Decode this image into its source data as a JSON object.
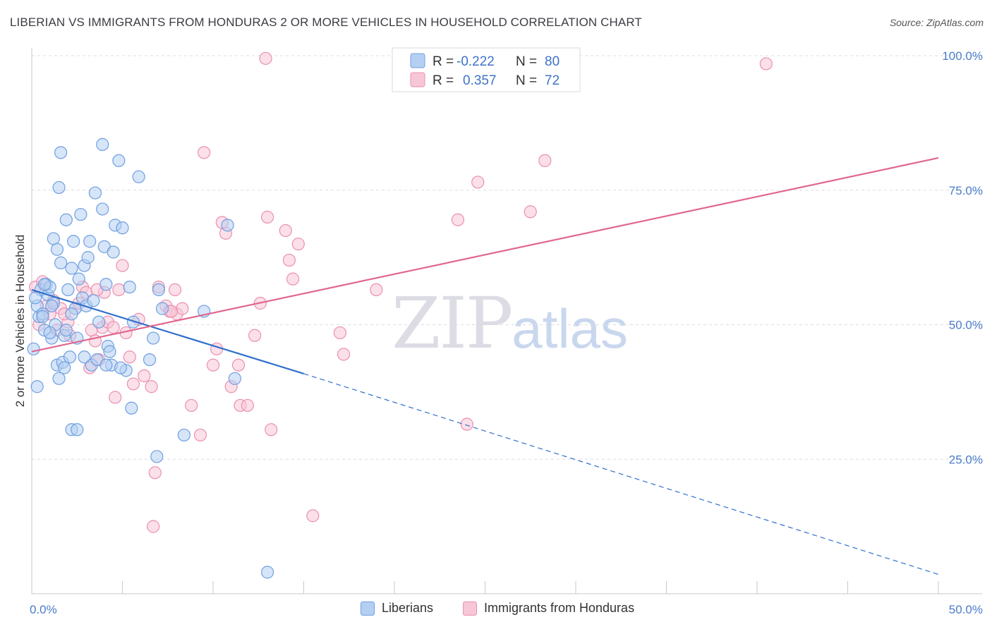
{
  "title": "LIBERIAN VS IMMIGRANTS FROM HONDURAS 2 OR MORE VEHICLES IN HOUSEHOLD CORRELATION CHART",
  "source": "Source: ZipAtlas.com",
  "watermark": {
    "zip": "ZIP",
    "atlas": "atlas"
  },
  "colors": {
    "blue_fill": "#b4cff2",
    "blue_stroke": "#6f9fe0",
    "blue_line": "#2f6fcc",
    "pink_fill": "#f7c6d7",
    "pink_stroke": "#eb8fb0",
    "pink_line": "#e0678f",
    "grid": "#dcdce4",
    "tick_text": "#4a7cc9"
  },
  "legend": {
    "rows": [
      {
        "r_label": "R =",
        "r_value": "-0.222",
        "n_label": "N =",
        "n_value": "80"
      },
      {
        "r_label": "R =",
        "r_value": "0.357",
        "n_label": "N =",
        "n_value": "72"
      }
    ]
  },
  "chart_data": {
    "type": "scatter",
    "title": "LIBERIAN VS IMMIGRANTS FROM HONDURAS 2 OR MORE VEHICLES IN HOUSEHOLD CORRELATION CHART",
    "xlabel": "",
    "ylabel": "2 or more Vehicles in Household",
    "xlim": [
      0,
      50
    ],
    "ylim": [
      0,
      102
    ],
    "x_tick_labels": [
      {
        "value": 0,
        "label": "0.0%"
      },
      {
        "value": 50,
        "label": "50.0%"
      }
    ],
    "y_tick_labels": [
      {
        "value": 25,
        "label": "25.0%"
      },
      {
        "value": 50,
        "label": "50.0%"
      },
      {
        "value": 75,
        "label": "75.0%"
      },
      {
        "value": 100,
        "label": "100.0%"
      }
    ],
    "grid": true,
    "legend_position": "top-center",
    "series": [
      {
        "name": "Liberians",
        "color": "blue",
        "r": -0.222,
        "n": 80,
        "trend": {
          "x0": 0,
          "y0": 56.5,
          "x1": 15,
          "y1": 40.9,
          "dash_to_x": 50,
          "dash_to_y": 3.6
        },
        "points": [
          [
            0.1,
            45.5
          ],
          [
            0.3,
            53.5
          ],
          [
            0.4,
            51.5
          ],
          [
            0.5,
            56.5
          ],
          [
            0.6,
            52.0
          ],
          [
            0.7,
            49.0
          ],
          [
            0.8,
            57.5
          ],
          [
            0.9,
            55.5
          ],
          [
            1.0,
            57.0
          ],
          [
            1.1,
            47.5
          ],
          [
            1.2,
            54.0
          ],
          [
            1.3,
            50.0
          ],
          [
            1.4,
            42.5
          ],
          [
            1.5,
            40.0
          ],
          [
            1.6,
            61.5
          ],
          [
            1.7,
            43.0
          ],
          [
            1.8,
            48.0
          ],
          [
            1.9,
            49.0
          ],
          [
            2.0,
            56.5
          ],
          [
            2.1,
            44.0
          ],
          [
            2.2,
            60.5
          ],
          [
            2.3,
            65.5
          ],
          [
            2.4,
            53.0
          ],
          [
            2.5,
            47.5
          ],
          [
            2.6,
            58.5
          ],
          [
            2.7,
            70.5
          ],
          [
            2.8,
            55.0
          ],
          [
            2.9,
            61.0
          ],
          [
            3.0,
            53.5
          ],
          [
            3.1,
            62.5
          ],
          [
            3.2,
            65.5
          ],
          [
            3.3,
            42.5
          ],
          [
            3.5,
            74.5
          ],
          [
            3.7,
            50.5
          ],
          [
            3.9,
            71.5
          ],
          [
            4.0,
            64.5
          ],
          [
            4.1,
            57.5
          ],
          [
            4.2,
            46.0
          ],
          [
            4.3,
            45.0
          ],
          [
            4.4,
            42.5
          ],
          [
            4.5,
            63.5
          ],
          [
            4.6,
            68.5
          ],
          [
            5.0,
            68.0
          ],
          [
            5.2,
            41.5
          ],
          [
            5.4,
            57.0
          ],
          [
            5.5,
            34.5
          ],
          [
            5.6,
            50.5
          ],
          [
            5.9,
            77.5
          ],
          [
            6.5,
            43.5
          ],
          [
            6.7,
            47.5
          ],
          [
            7.0,
            56.5
          ],
          [
            7.2,
            53.0
          ],
          [
            9.5,
            52.5
          ],
          [
            10.8,
            68.5
          ],
          [
            11.2,
            40.0
          ],
          [
            13.0,
            4.0
          ],
          [
            0.3,
            38.5
          ],
          [
            1.2,
            66.0
          ],
          [
            1.4,
            64.0
          ],
          [
            1.5,
            75.5
          ],
          [
            1.6,
            82.0
          ],
          [
            1.9,
            69.5
          ],
          [
            2.2,
            30.5
          ],
          [
            2.5,
            30.5
          ],
          [
            3.9,
            83.5
          ],
          [
            4.8,
            80.5
          ],
          [
            6.9,
            25.5
          ],
          [
            8.4,
            29.5
          ],
          [
            0.7,
            57.5
          ],
          [
            1.0,
            48.5
          ],
          [
            1.8,
            42.0
          ],
          [
            2.9,
            44.0
          ],
          [
            3.6,
            43.5
          ],
          [
            4.1,
            42.5
          ],
          [
            0.2,
            55.0
          ],
          [
            0.6,
            51.5
          ],
          [
            1.1,
            53.5
          ],
          [
            2.2,
            52.0
          ],
          [
            3.4,
            54.5
          ],
          [
            4.9,
            42.0
          ]
        ]
      },
      {
        "name": "Immigrants from Honduras",
        "color": "pink",
        "r": 0.357,
        "n": 72,
        "trend": {
          "x0": 0,
          "y0": 45.0,
          "x1": 50,
          "y1": 81.0
        },
        "points": [
          [
            0.2,
            57.0
          ],
          [
            0.4,
            50.0
          ],
          [
            0.6,
            58.0
          ],
          [
            0.8,
            53.5
          ],
          [
            1.0,
            52.0
          ],
          [
            1.2,
            54.5
          ],
          [
            1.4,
            49.0
          ],
          [
            1.6,
            53.0
          ],
          [
            2.0,
            50.5
          ],
          [
            2.4,
            53.0
          ],
          [
            2.6,
            54.0
          ],
          [
            2.8,
            57.0
          ],
          [
            3.0,
            56.0
          ],
          [
            3.3,
            49.0
          ],
          [
            3.5,
            47.0
          ],
          [
            3.7,
            43.5
          ],
          [
            3.9,
            49.5
          ],
          [
            4.0,
            56.0
          ],
          [
            4.2,
            50.5
          ],
          [
            4.5,
            49.5
          ],
          [
            4.8,
            56.5
          ],
          [
            5.0,
            61.0
          ],
          [
            5.2,
            48.5
          ],
          [
            5.4,
            44.0
          ],
          [
            5.6,
            39.0
          ],
          [
            5.9,
            51.0
          ],
          [
            6.2,
            40.5
          ],
          [
            6.6,
            38.5
          ],
          [
            7.0,
            57.0
          ],
          [
            7.4,
            53.5
          ],
          [
            7.6,
            52.5
          ],
          [
            7.9,
            56.5
          ],
          [
            8.0,
            52.0
          ],
          [
            8.3,
            53.0
          ],
          [
            8.8,
            35.0
          ],
          [
            9.3,
            29.5
          ],
          [
            9.5,
            82.0
          ],
          [
            10.0,
            42.5
          ],
          [
            10.2,
            45.5
          ],
          [
            10.5,
            69.0
          ],
          [
            10.7,
            67.0
          ],
          [
            11.0,
            38.5
          ],
          [
            11.4,
            42.5
          ],
          [
            11.5,
            35.0
          ],
          [
            11.9,
            35.0
          ],
          [
            12.3,
            48.0
          ],
          [
            12.6,
            54.0
          ],
          [
            12.9,
            99.5
          ],
          [
            13.0,
            70.0
          ],
          [
            13.2,
            30.5
          ],
          [
            14.0,
            67.5
          ],
          [
            14.2,
            62.0
          ],
          [
            14.4,
            58.5
          ],
          [
            14.7,
            65.0
          ],
          [
            15.5,
            14.5
          ],
          [
            17.0,
            48.5
          ],
          [
            17.2,
            44.5
          ],
          [
            19.0,
            56.5
          ],
          [
            23.5,
            69.5
          ],
          [
            24.0,
            31.5
          ],
          [
            24.6,
            76.5
          ],
          [
            27.5,
            71.0
          ],
          [
            28.3,
            80.5
          ],
          [
            40.5,
            98.5
          ],
          [
            6.8,
            22.5
          ],
          [
            6.7,
            12.5
          ],
          [
            4.6,
            36.5
          ],
          [
            3.2,
            42.0
          ],
          [
            2.1,
            48.0
          ],
          [
            3.6,
            56.5
          ],
          [
            1.8,
            52.0
          ],
          [
            7.7,
            52.5
          ]
        ]
      }
    ]
  }
}
